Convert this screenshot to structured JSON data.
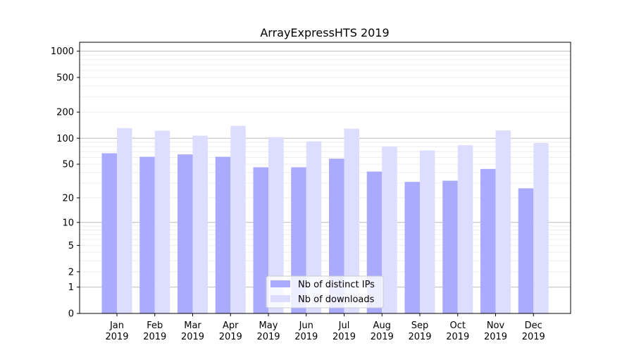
{
  "chart_data": {
    "type": "bar",
    "title": "ArrayExpressHTS 2019",
    "xlabel": "",
    "ylabel": "",
    "yscale": "symlog",
    "ylim": [
      0,
      1300
    ],
    "yticks": [
      0,
      1,
      2,
      5,
      10,
      20,
      50,
      100,
      200,
      500,
      1000
    ],
    "grid": true,
    "legend_position": "bottom-center",
    "categories": [
      "Jan\n2019",
      "Feb\n2019",
      "Mar\n2019",
      "Apr\n2019",
      "May\n2019",
      "Jun\n2019",
      "Jul\n2019",
      "Aug\n2019",
      "Sep\n2019",
      "Oct\n2019",
      "Nov\n2019",
      "Dec\n2019"
    ],
    "series": [
      {
        "name": "Nb of distinct IPs",
        "color": "#aaaaff",
        "values": [
          67,
          61,
          65,
          61,
          46,
          46,
          58,
          41,
          31,
          32,
          44,
          26
        ]
      },
      {
        "name": "Nb of downloads",
        "color": "#ddddff",
        "values": [
          131,
          122,
          107,
          139,
          103,
          92,
          129,
          80,
          72,
          83,
          123,
          88
        ]
      }
    ]
  }
}
